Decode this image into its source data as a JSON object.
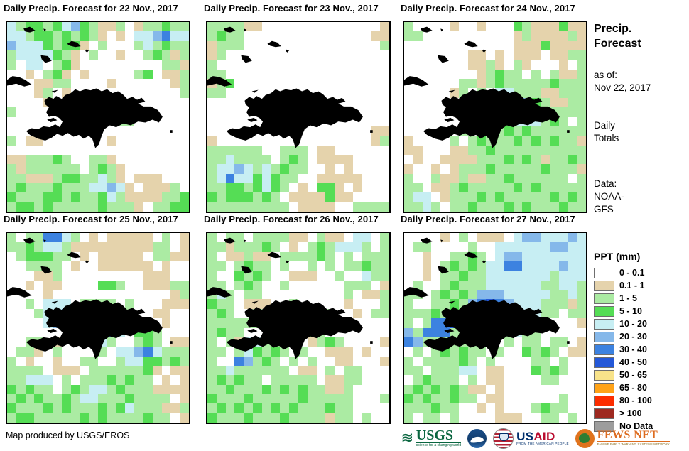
{
  "panels": [
    {
      "title": "Daily Precip. Forecast for 22 Nov., 2017",
      "grid": [
        "cgGGgGcbGgttg.tggGgg",
        "ccgGGgGgGgt.t.ccbBcc",
        "bcccGgGGt.g...gcgGgg",
        "gccccGgt.g..t..gGgtg",
        "g.cc.gGt.........ggt",
        "..t.gGt.t.....gG.ttg",
        "...ttgg....t......tg",
        "...tg.t............g",
        "....t...............",
        "g...........gG......",
        "............gg......",
        "....................",
        "g.tt.......t........",
        "....................",
        "ttgggGg..ggt........",
        "gtgggggg.gGgt.......",
        "ggtttgGGggcgt.ttt...",
        "gGgggGgggccbct.tttg.",
        "GgggGGgGggGcgttttggG",
        "gGGgGgggggGgggt.ggGG"
      ]
    },
    {
      "title": "Daily Precip. Forecast for 23 Nov., 2017",
      "grid": [
        "ggggtt.............t",
        "gGgg..............tt",
        "tggg...............g",
        "tg..................",
        "g...................",
        "gg..................",
        "tgG.................",
        "gg..................",
        "....................",
        "....................",
        "....................",
        "..................tt",
        "t.................tg",
        "gggggg..ggg.tt......",
        "ggcgggg.gGg.tttt....",
        "gccbcgcgGgg..t.t....",
        "gcBccGcGgg..ttttt...",
        "ggGGgGcGg.t.GGt.t...",
        "GgGGGgGg.ttttGtt....",
        "ggggggggg.tttt..gggg"
      ]
    },
    {
      "title": "Daily Precip. Forecast for 24 Nov., 2017",
      "grid": [
        "g....t..t...GgtttGtt",
        "gg..........tgttttgt",
        "............tttGtttt",
        ".......tt.t.ttt.ttgg",
        ".......ttgt.gt...t.g",
        "........tgGgg.g.gttg",
        "......ggtgGgggggGggg",
        ".....tg.g.ccgggttggg",
        "........gggGcbGgttgg",
        "........g.gccBcGgggg",
        ".......g.ggGcccgGg.g",
        "......g.gGgGgGgggggg",
        "t....g.gGgggGgGgGggt",
        "tt...ttggGgggggggggg",
        ".t..ttttgggGgGgtggGg",
        "t..t.tgggGgggggGgggt",
        "g..gttgttggGgggggg.g",
        "gg.ttgGgggggGgGggggg",
        "gcc.tgggGgGgggggGgGg",
        "ggcg.ggGgggGgGgggGgg"
      ]
    },
    {
      "title": "Daily Precip. Forecast for 25 Nov., 2017",
      "grid": [
        "g.ggBBcg.t.ttttt.g.t",
        "ggGgccgtttttttttgg.t",
        ".gGGGgg.t.ttttt.ggtt",
        "..gggg.t..tttttt.t..",
        "...ttg.........ttt..",
        "..t.tt....GGg..tttgg",
        "....t.............tg",
        "..g.ccc.gggg.g...ttt",
        "...gccBgggggGg..tt..",
        "....cbg..g....c..t..",
        ".........cbBc.GGg...",
        "..gg.t...gcg..gGg.tt",
        ".ggt.g....g.ccbBcggg",
        "g.t..t..gg..gccGGgGg",
        "gggg.ttt.ggggggGt.tt",
        "ggccc.g.gggGgGgg.t.t",
        "GgGgg.gGgccgGgggtttt",
        "gGgGggGgccgggGgggg.t",
        "GgggGgGgggGgGcgggttg",
        "gGGgggggGgGggggGgg.t"
      ]
    },
    {
      "title": "Daily Precip. Forecast for 26 Nov., 2017",
      "grid": [
        "g.gg.ggggtt.gtt.cc.g",
        "ggtgggGg.t.gGgcccg.g",
        "g.ttgtt.ggggGg.g.ggg",
        "gg.gGgg.g..g.g.ggGgg",
        "g..GgGg..ttt..g..cgg",
        "gg.gGg..g......ggg.t",
        "gcg.gg.........g.ttg",
        "Ggg.ttt..g.....t...g",
        "gGg..g.gbcg..g..t.gg",
        "gggggg.Bbcc.........",
        "gGgg...gBcgGg.......",
        "g.gtccgggg.tgGg....t",
        "gg.gcGgGg.g..ttt.t..",
        "g..BbgGg.g.g..tt...t",
        "ggcgggggg.tt.g.gg...",
        "gGgGgg.ggggg.ttgg...",
        "ggGgggGgGgGggttg....",
        "GgggGgggggGggggg...g",
        "gGgGgGgGgGgggGgg....",
        "GgggGgggGggggtgg.g.."
      ]
    },
    {
      "title": "Daily Precip. Forecast for 27 Nov., 2017",
      "grid": [
        "....t.g.ttt.cbbcccbc",
        ".gg....g..ccccccbbcc",
        "..t..ggGg.cbbccccccc",
        "..t.gGgGgccBBccccbcc",
        "..t.ggGggcccccccgccc",
        ".g..gGgggccccccggccg",
        "gg.gGgGgbbbcccccggcg",
        "g..ggGgbBDBbcccgggtg",
        "gggGgGgcbbccBccgg.gg",
        "g.gBBDgGgcccccg....t",
        "bgBBBgggGgggcgg.....",
        "Bbgggggggg.g.gg.gg.t",
        ".g.gGgGgg.g..GgGg.tt",
        "g.ggggGg.g....gg.g..",
        "gg.gggcc.tt...GgGg..",
        ".gGggg.g.tt....gg...",
        "gGgGgGgtt.t.........",
        "GgGggGgg.tt......g..",
        "gggGgg..t.t...gGgg..",
        "g.gg.g....ttt..gg.g."
      ]
    }
  ],
  "colors": {
    ".": "#FFFFFF",
    "t": "#E5D3AC",
    "g": "#ABEBA3",
    "G": "#55DD55",
    "c": "#C7EEF3",
    "b": "#85B8EA",
    "B": "#3C82E0",
    "D": "#2458D8"
  },
  "sidebar": {
    "title_line1": "Precip.",
    "title_line2": "Forecast",
    "as_of_label": "as of:",
    "as_of_value": "Nov 22, 2017",
    "totals_line1": "Daily",
    "totals_line2": "Totals",
    "data_label": "Data:",
    "data_line1": "NOAA-",
    "data_line2": "GFS"
  },
  "legend": {
    "title": "PPT (mm)",
    "items": [
      {
        "label": "0 - 0.1",
        "color": "#FFFFFF"
      },
      {
        "label": "0.1 - 1",
        "color": "#E5D3AC"
      },
      {
        "label": "1 - 5",
        "color": "#ABEBA3"
      },
      {
        "label": "5 - 10",
        "color": "#55DD55"
      },
      {
        "label": "10 - 20",
        "color": "#C7EEF3"
      },
      {
        "label": "20 - 30",
        "color": "#85B8EA"
      },
      {
        "label": "30 - 40",
        "color": "#3C82E0"
      },
      {
        "label": "40 - 50",
        "color": "#2458D8"
      },
      {
        "label": "50 - 65",
        "color": "#F8E38A"
      },
      {
        "label": "65 - 80",
        "color": "#FFA318"
      },
      {
        "label": "80 - 100",
        "color": "#FC2D00"
      },
      {
        "label": "> 100",
        "color": "#9E2920"
      },
      {
        "label": "No Data",
        "color": "#9D9D9D"
      }
    ]
  },
  "footer": {
    "credit": "Map produced by USGS/EROS",
    "usgs": {
      "name": "USGS",
      "tagline": "science for a changing world"
    },
    "usaid": {
      "us": "US",
      "aid": "AID",
      "tagline": "FROM THE AMERICAN PEOPLE"
    },
    "fewsnet": {
      "name": "FEWS NET",
      "tagline": "FAMINE EARLY WARNING SYSTEMS NETWORK"
    }
  }
}
